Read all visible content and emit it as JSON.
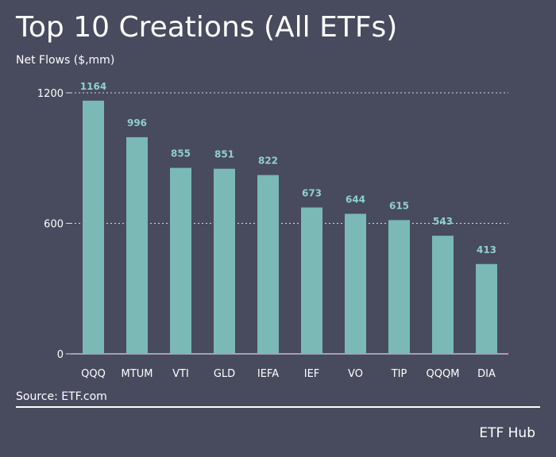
{
  "page": {
    "source": "Source: ETF.com",
    "brand": "ETF Hub"
  },
  "colors": {
    "background": "#484a5e",
    "bar": "#7ab9b6",
    "value_label": "#8fd0cc",
    "text": "#ffffff",
    "grid": "#d8d8e0"
  },
  "chart_data": {
    "type": "bar",
    "title": "Top 10 Creations (All ETFs)",
    "ylabel": "Net Flows ($,mm)",
    "xlabel": "",
    "categories": [
      "QQQ",
      "MTUM",
      "VTI",
      "GLD",
      "IEFA",
      "IEF",
      "VO",
      "TIP",
      "QQQM",
      "DIA"
    ],
    "values": [
      1164,
      996,
      855,
      851,
      822,
      673,
      644,
      615,
      543,
      413
    ],
    "yticks": [
      0,
      600,
      1200
    ],
    "ylim": [
      0,
      1200
    ],
    "grid": "dotted horizontal at 600 and 1200",
    "legend": "none"
  }
}
